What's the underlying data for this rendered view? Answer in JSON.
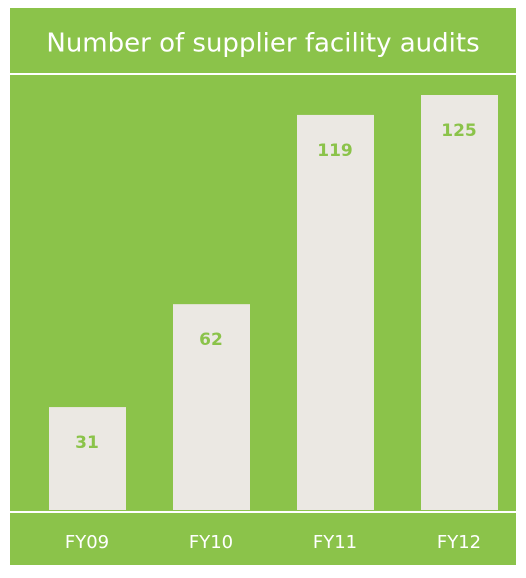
{
  "chart_data": {
    "type": "bar",
    "title": "Number of supplier facility audits",
    "categories": [
      "FY09",
      "FY10",
      "FY11",
      "FY12"
    ],
    "values": [
      31,
      62,
      119,
      125
    ],
    "color": "#ebe8e3",
    "background": "#8bc34a"
  }
}
